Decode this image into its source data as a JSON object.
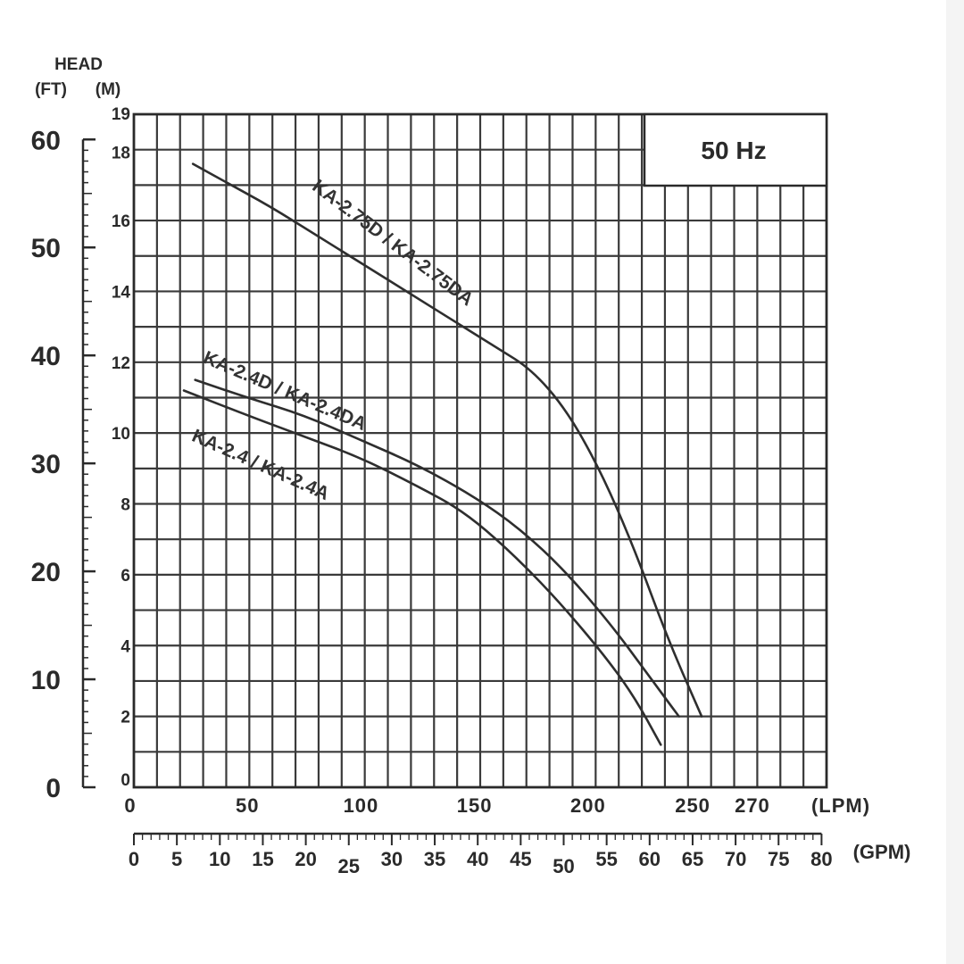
{
  "chart_data": {
    "type": "line",
    "title": "",
    "y_title": "HEAD",
    "y_units": [
      "(FT)",
      "(M)"
    ],
    "x_units": [
      "(LPM)",
      "(GPM)"
    ],
    "frequency": "50 Hz",
    "xlim": [
      0,
      305
    ],
    "ylim": [
      0,
      19
    ],
    "lpm_ticks": [
      {
        "value": 0,
        "label": "0"
      },
      {
        "value": 50,
        "label": "50"
      },
      {
        "value": 100,
        "label": "100"
      },
      {
        "value": 150,
        "label": "150"
      },
      {
        "value": 200,
        "label": "200"
      },
      {
        "value": 250,
        "label": "250"
      },
      {
        "value": 270,
        "label": "270"
      }
    ],
    "m_ticks": [
      {
        "value": 0,
        "label": "0"
      },
      {
        "value": 2,
        "label": "2"
      },
      {
        "value": 4,
        "label": "4"
      },
      {
        "value": 6,
        "label": "6"
      },
      {
        "value": 8,
        "label": "8"
      },
      {
        "value": 10,
        "label": "10"
      },
      {
        "value": 12,
        "label": "12"
      },
      {
        "value": 14,
        "label": "14"
      },
      {
        "value": 16,
        "label": "16"
      },
      {
        "value": 18,
        "label": "18"
      },
      {
        "value": 19,
        "label": "19"
      }
    ],
    "ft_ticks": [
      {
        "value": 0,
        "label": "0"
      },
      {
        "value": 10,
        "label": "10"
      },
      {
        "value": 20,
        "label": "20"
      },
      {
        "value": 30,
        "label": "30"
      },
      {
        "value": 40,
        "label": "40"
      },
      {
        "value": 50,
        "label": "50"
      },
      {
        "value": 60,
        "label": "60"
      }
    ],
    "gpm_ticks": [
      {
        "value": 0,
        "label": "0"
      },
      {
        "value": 5,
        "label": "5"
      },
      {
        "value": 10,
        "label": "10"
      },
      {
        "value": 15,
        "label": "15"
      },
      {
        "value": 20,
        "label": "20"
      },
      {
        "value": 25,
        "label": "25"
      },
      {
        "value": 30,
        "label": "30"
      },
      {
        "value": 35,
        "label": "35"
      },
      {
        "value": 40,
        "label": "40"
      },
      {
        "value": 45,
        "label": "45"
      },
      {
        "value": 50,
        "label": "50"
      },
      {
        "value": 55,
        "label": "55"
      },
      {
        "value": 60,
        "label": "60"
      },
      {
        "value": 65,
        "label": "65"
      },
      {
        "value": 70,
        "label": "70"
      },
      {
        "value": 75,
        "label": "75"
      },
      {
        "value": 80,
        "label": "80"
      }
    ],
    "series": [
      {
        "name": "KA-2.75D / KA-2.75DA",
        "points": [
          [
            26,
            17.6
          ],
          [
            40,
            17.1
          ],
          [
            60,
            16.4
          ],
          [
            80,
            15.6
          ],
          [
            100,
            14.8
          ],
          [
            120,
            14.0
          ],
          [
            140,
            13.2
          ],
          [
            160,
            12.4
          ],
          [
            175,
            11.8
          ],
          [
            190,
            10.7
          ],
          [
            205,
            9.0
          ],
          [
            220,
            6.8
          ],
          [
            235,
            4.2
          ],
          [
            250,
            2.0
          ]
        ]
      },
      {
        "name": "KA-2.4D / KA-2.4DA",
        "points": [
          [
            27,
            11.5
          ],
          [
            50,
            11.0
          ],
          [
            75,
            10.5
          ],
          [
            100,
            9.8
          ],
          [
            125,
            9.1
          ],
          [
            150,
            8.2
          ],
          [
            170,
            7.3
          ],
          [
            190,
            6.1
          ],
          [
            210,
            4.6
          ],
          [
            225,
            3.3
          ],
          [
            240,
            2.0
          ]
        ]
      },
      {
        "name": "KA-2.4 / KA-2.4A",
        "points": [
          [
            22,
            11.2
          ],
          [
            50,
            10.5
          ],
          [
            75,
            9.9
          ],
          [
            100,
            9.3
          ],
          [
            125,
            8.5
          ],
          [
            145,
            7.8
          ],
          [
            165,
            6.7
          ],
          [
            185,
            5.4
          ],
          [
            205,
            3.9
          ],
          [
            220,
            2.6
          ],
          [
            232,
            1.2
          ]
        ]
      }
    ]
  }
}
